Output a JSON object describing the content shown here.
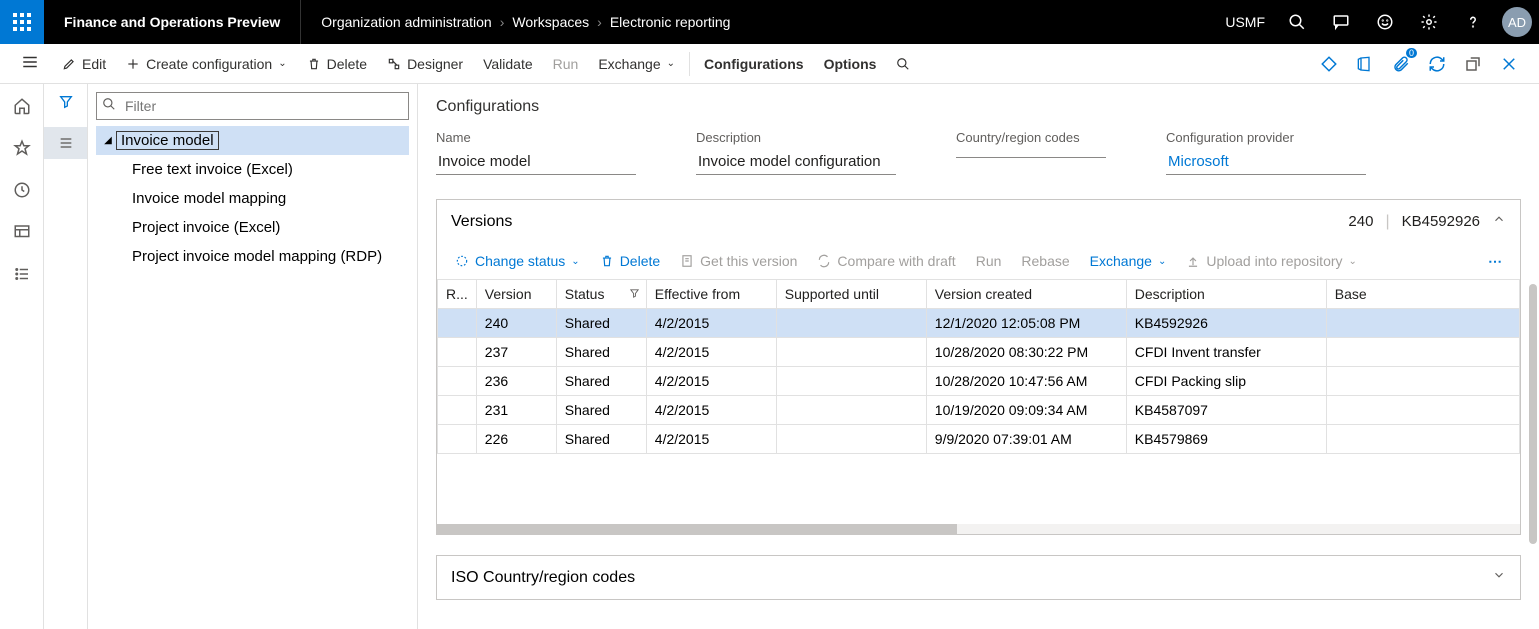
{
  "topbar": {
    "app_title": "Finance and Operations Preview",
    "breadcrumb": [
      "Organization administration",
      "Workspaces",
      "Electronic reporting"
    ],
    "company": "USMF",
    "avatar": "AD"
  },
  "cmdbar": {
    "edit": "Edit",
    "create_config": "Create configuration",
    "delete": "Delete",
    "designer": "Designer",
    "validate": "Validate",
    "run": "Run",
    "exchange": "Exchange",
    "configurations": "Configurations",
    "options": "Options"
  },
  "tree": {
    "filter_placeholder": "Filter",
    "root": "Invoice model",
    "children": [
      "Free text invoice (Excel)",
      "Invoice model mapping",
      "Project invoice (Excel)",
      "Project invoice model mapping (RDP)"
    ]
  },
  "details": {
    "section_title": "Configurations",
    "labels": {
      "name": "Name",
      "description": "Description",
      "country": "Country/region codes",
      "provider": "Configuration provider"
    },
    "values": {
      "name": "Invoice model",
      "description": "Invoice model configuration",
      "country": "",
      "provider": "Microsoft"
    }
  },
  "versions": {
    "title": "Versions",
    "summary_version": "240",
    "summary_desc": "KB4592926",
    "toolbar": {
      "change_status": "Change status",
      "delete": "Delete",
      "get_version": "Get this version",
      "compare": "Compare with draft",
      "run": "Run",
      "rebase": "Rebase",
      "exchange": "Exchange",
      "upload": "Upload into repository"
    },
    "columns": [
      "R...",
      "Version",
      "Status",
      "Effective from",
      "Supported until",
      "Version created",
      "Description",
      "Base"
    ],
    "rows": [
      {
        "r": "",
        "version": "240",
        "status": "Shared",
        "eff": "4/2/2015",
        "supp": "",
        "created": "12/1/2020 12:05:08 PM",
        "desc": "KB4592926",
        "base": ""
      },
      {
        "r": "",
        "version": "237",
        "status": "Shared",
        "eff": "4/2/2015",
        "supp": "",
        "created": "10/28/2020 08:30:22 PM",
        "desc": "CFDI Invent transfer",
        "base": ""
      },
      {
        "r": "",
        "version": "236",
        "status": "Shared",
        "eff": "4/2/2015",
        "supp": "",
        "created": "10/28/2020 10:47:56 AM",
        "desc": "CFDI Packing slip",
        "base": ""
      },
      {
        "r": "",
        "version": "231",
        "status": "Shared",
        "eff": "4/2/2015",
        "supp": "",
        "created": "10/19/2020 09:09:34 AM",
        "desc": "KB4587097",
        "base": ""
      },
      {
        "r": "",
        "version": "226",
        "status": "Shared",
        "eff": "4/2/2015",
        "supp": "",
        "created": "9/9/2020 07:39:01 AM",
        "desc": "KB4579869",
        "base": ""
      }
    ]
  },
  "iso": {
    "title": "ISO Country/region codes"
  }
}
